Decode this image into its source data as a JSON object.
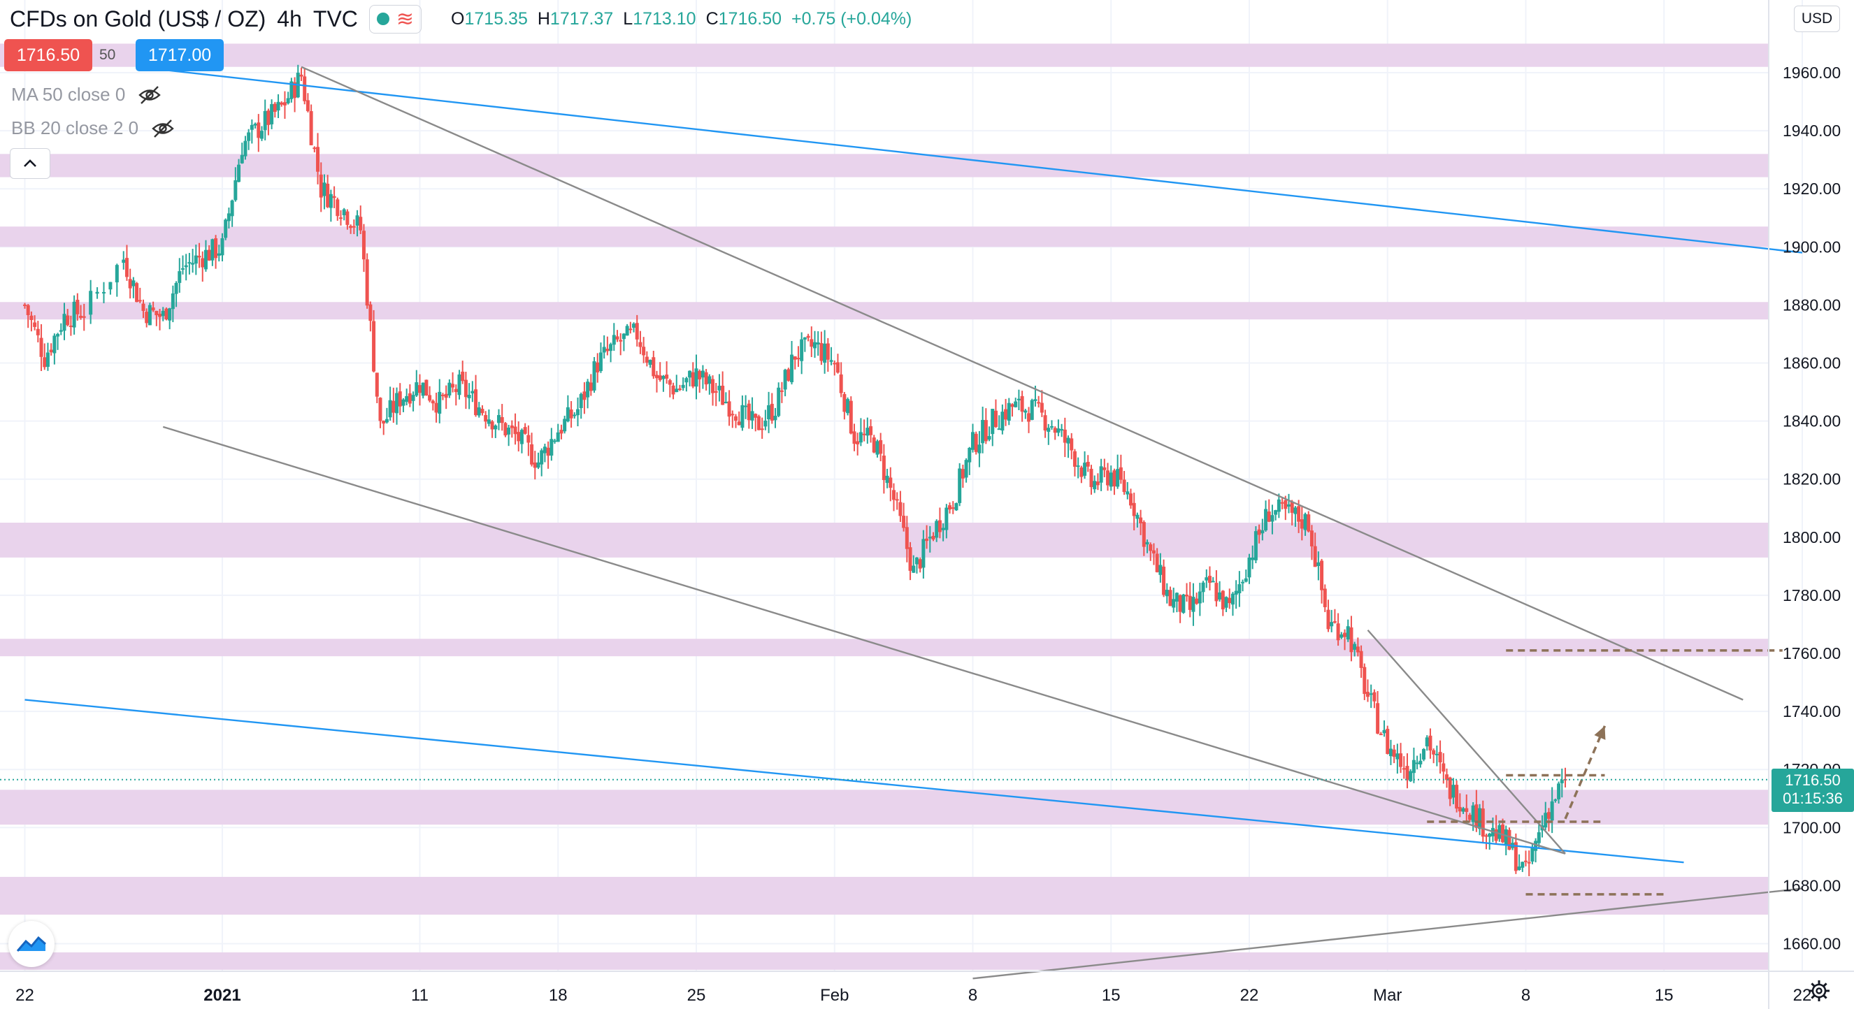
{
  "header": {
    "symbol": "CFDs on Gold (US$ / OZ)",
    "interval": "4h",
    "source": "TVC",
    "open_label": "O",
    "open": "1715.35",
    "high_label": "H",
    "high": "1717.37",
    "low_label": "L",
    "low": "1713.10",
    "close_label": "C",
    "close": "1716.50",
    "change": "+0.75 (+0.04%)"
  },
  "trade": {
    "sell_price": "1716.50",
    "spread": "50",
    "buy_price": "1717.00"
  },
  "indicators": [
    {
      "label": "MA 50 close 0"
    },
    {
      "label": "BB 20 close 2 0"
    }
  ],
  "price_axis": {
    "currency": "USD",
    "last_price": "1716.50",
    "countdown": "01:15:36"
  },
  "icons": {
    "collapse": "chevron-up-icon",
    "visibility": "eye-off-icon",
    "brand": "tradingview-logo-icon",
    "settings": "gear-icon"
  },
  "colors": {
    "up": "#26a69a",
    "down": "#ef5350",
    "zone": "#e9d3ec",
    "trend_blue": "#2196f3",
    "trend_gray": "#8a8a8a",
    "projection": "#8d7258",
    "sell": "#ef5350",
    "buy": "#2196f3"
  },
  "chart_data": {
    "type": "candlestick",
    "interval": "4h",
    "y_axis": {
      "ticks": [
        1660,
        1680,
        1700,
        1720,
        1740,
        1760,
        1780,
        1800,
        1820,
        1840,
        1860,
        1880,
        1900,
        1920,
        1940,
        1960
      ],
      "range": [
        1648,
        1980
      ]
    },
    "x_axis": {
      "tick_labels": [
        "22",
        "2021",
        "11",
        "18",
        "25",
        "Feb",
        "8",
        "15",
        "22",
        "Mar",
        "8",
        "15",
        "22"
      ]
    },
    "grid": true,
    "last_price": 1716.5,
    "resistance_support_zones": [
      {
        "from": 1962,
        "to": 1970
      },
      {
        "from": 1924,
        "to": 1932
      },
      {
        "from": 1900,
        "to": 1907
      },
      {
        "from": 1875,
        "to": 1881
      },
      {
        "from": 1793,
        "to": 1805
      },
      {
        "from": 1759,
        "to": 1765
      },
      {
        "from": 1701,
        "to": 1713
      },
      {
        "from": 1670,
        "to": 1683
      },
      {
        "from": 1651,
        "to": 1657
      }
    ],
    "trendlines": [
      {
        "color": "blue",
        "from": {
          "date": "2020-12-29",
          "price": 1961
        },
        "to": {
          "date": "2021-03-22",
          "price": 1898
        }
      },
      {
        "color": "blue",
        "from": {
          "date": "2020-12-22",
          "price": 1744
        },
        "to": {
          "date": "2021-03-16",
          "price": 1688
        }
      },
      {
        "color": "gray",
        "from": {
          "date": "2021-01-05",
          "price": 1962
        },
        "to": {
          "date": "2021-03-19",
          "price": 1744
        }
      },
      {
        "color": "gray",
        "from": {
          "date": "2020-12-29",
          "price": 1838
        },
        "to": {
          "date": "2021-03-10",
          "price": 1691
        }
      },
      {
        "color": "gray",
        "from": {
          "date": "2021-02-08",
          "price": 1648
        },
        "to": {
          "date": "2021-03-22",
          "price": 1679
        }
      },
      {
        "color": "gray",
        "from": {
          "date": "2021-02-28",
          "price": 1768
        },
        "to": {
          "date": "2021-03-10",
          "price": 1691
        }
      }
    ],
    "levels_dashed": [
      {
        "price": 1761,
        "from": "2021-03-07",
        "to": "2021-03-21"
      },
      {
        "price": 1718,
        "from": "2021-03-07",
        "to": "2021-03-12"
      },
      {
        "price": 1702,
        "from": "2021-03-03",
        "to": "2021-03-12"
      },
      {
        "price": 1677,
        "from": "2021-03-08",
        "to": "2021-03-15"
      }
    ],
    "projection_arrow": {
      "from": {
        "date": "2021-03-10",
        "price": 1703
      },
      "to": {
        "date": "2021-03-12",
        "price": 1735
      }
    },
    "price_path": [
      [
        "2020-12-22",
        1880
      ],
      [
        "2020-12-23",
        1862
      ],
      [
        "2020-12-24",
        1876
      ],
      [
        "2020-12-25",
        1878
      ],
      [
        "2020-12-27",
        1896
      ],
      [
        "2020-12-28",
        1878
      ],
      [
        "2020-12-29",
        1876
      ],
      [
        "2020-12-30",
        1893
      ],
      [
        "2020-12-31",
        1897
      ],
      [
        "2021-01-01",
        1900
      ],
      [
        "2021-01-02",
        1935
      ],
      [
        "2021-01-03",
        1942
      ],
      [
        "2021-01-04",
        1948
      ],
      [
        "2021-01-05",
        1959
      ],
      [
        "2021-01-06",
        1920
      ],
      [
        "2021-01-07",
        1914
      ],
      [
        "2021-01-08",
        1906
      ],
      [
        "2021-01-09",
        1838
      ],
      [
        "2021-01-10",
        1848
      ],
      [
        "2021-01-11",
        1853
      ],
      [
        "2021-01-12",
        1846
      ],
      [
        "2021-01-13",
        1852
      ],
      [
        "2021-01-14",
        1845
      ],
      [
        "2021-01-15",
        1839
      ],
      [
        "2021-01-16",
        1834
      ],
      [
        "2021-01-17",
        1826
      ],
      [
        "2021-01-18",
        1837
      ],
      [
        "2021-01-19",
        1844
      ],
      [
        "2021-01-20",
        1860
      ],
      [
        "2021-01-21",
        1867
      ],
      [
        "2021-01-22",
        1870
      ],
      [
        "2021-01-23",
        1855
      ],
      [
        "2021-01-24",
        1851
      ],
      [
        "2021-01-25",
        1856
      ],
      [
        "2021-01-26",
        1850
      ],
      [
        "2021-01-27",
        1844
      ],
      [
        "2021-01-28",
        1838
      ],
      [
        "2021-01-29",
        1845
      ],
      [
        "2021-01-30",
        1863
      ],
      [
        "2021-01-31",
        1866
      ],
      [
        "2021-02-01",
        1860
      ],
      [
        "2021-02-02",
        1835
      ],
      [
        "2021-02-03",
        1833
      ],
      [
        "2021-02-04",
        1813
      ],
      [
        "2021-02-05",
        1788
      ],
      [
        "2021-02-06",
        1802
      ],
      [
        "2021-02-07",
        1813
      ],
      [
        "2021-02-08",
        1832
      ],
      [
        "2021-02-09",
        1840
      ],
      [
        "2021-02-10",
        1845
      ],
      [
        "2021-02-11",
        1844
      ],
      [
        "2021-02-12",
        1839
      ],
      [
        "2021-02-13",
        1830
      ],
      [
        "2021-02-14",
        1818
      ],
      [
        "2021-02-15",
        1822
      ],
      [
        "2021-02-16",
        1814
      ],
      [
        "2021-02-17",
        1794
      ],
      [
        "2021-02-18",
        1778
      ],
      [
        "2021-02-19",
        1775
      ],
      [
        "2021-02-20",
        1784
      ],
      [
        "2021-02-21",
        1775
      ],
      [
        "2021-02-22",
        1793
      ],
      [
        "2021-02-23",
        1809
      ],
      [
        "2021-02-24",
        1808
      ],
      [
        "2021-02-25",
        1805
      ],
      [
        "2021-02-26",
        1770
      ],
      [
        "2021-02-27",
        1768
      ],
      [
        "2021-02-28",
        1745
      ],
      [
        "2021-03-01",
        1728
      ],
      [
        "2021-03-02",
        1720
      ],
      [
        "2021-03-03",
        1731
      ],
      [
        "2021-03-04",
        1714
      ],
      [
        "2021-03-05",
        1708
      ],
      [
        "2021-03-06",
        1700
      ],
      [
        "2021-03-07",
        1695
      ],
      [
        "2021-03-08",
        1684
      ],
      [
        "2021-03-09",
        1705
      ],
      [
        "2021-03-10",
        1716.5
      ]
    ]
  }
}
